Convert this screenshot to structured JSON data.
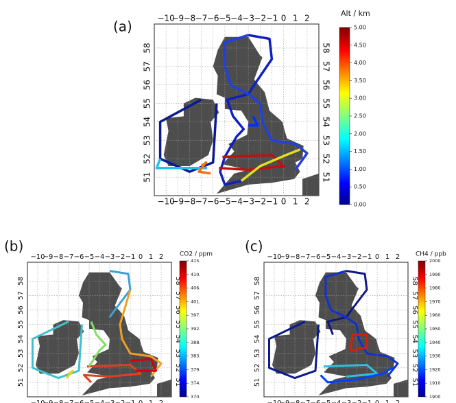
{
  "panels": [
    {
      "label": "(a)",
      "colorbar": {
        "title": "Alt / km",
        "ticks": [
          "5.00",
          "4.50",
          "4.00",
          "3.50",
          "3.00",
          "2.50",
          "2.00",
          "1.50",
          "1.00",
          "0.50",
          "0.00"
        ]
      },
      "lon_ticks": [
        "−10",
        "−9",
        "−8",
        "−7",
        "−6",
        "−5",
        "−4",
        "−3",
        "−2",
        "−1",
        "0",
        "1",
        "2"
      ],
      "lat_ticks": [
        "51",
        "52",
        "53",
        "54",
        "55",
        "56",
        "57",
        "58"
      ]
    },
    {
      "label": "(b)",
      "colorbar": {
        "title": "CO2 / ppm",
        "ticks": [
          "415.",
          "410.",
          "406.",
          "401.",
          "397.",
          "392.",
          "388.",
          "383.",
          "379.",
          "374.",
          "370."
        ]
      },
      "lon_ticks": [
        "−10",
        "−9",
        "−8",
        "−7",
        "−6",
        "−5",
        "−4",
        "−3",
        "−2",
        "−1",
        "0",
        "1",
        "2"
      ],
      "lat_ticks": [
        "51",
        "52",
        "53",
        "54",
        "55",
        "56",
        "57",
        "58"
      ]
    },
    {
      "label": "(c)",
      "colorbar": {
        "title": "CH4 / ppb",
        "ticks": [
          "2000",
          "1990",
          "1980",
          "1970",
          "1960",
          "1950",
          "1940",
          "1930",
          "1920",
          "1910",
          "1900"
        ]
      },
      "lon_ticks": [
        "−10",
        "−9",
        "−8",
        "−7",
        "−6",
        "−5",
        "−4",
        "−3",
        "−2",
        "−1",
        "0",
        "1",
        "2"
      ],
      "lat_ticks": [
        "51",
        "52",
        "53",
        "54",
        "55",
        "56",
        "57",
        "58"
      ]
    }
  ]
}
